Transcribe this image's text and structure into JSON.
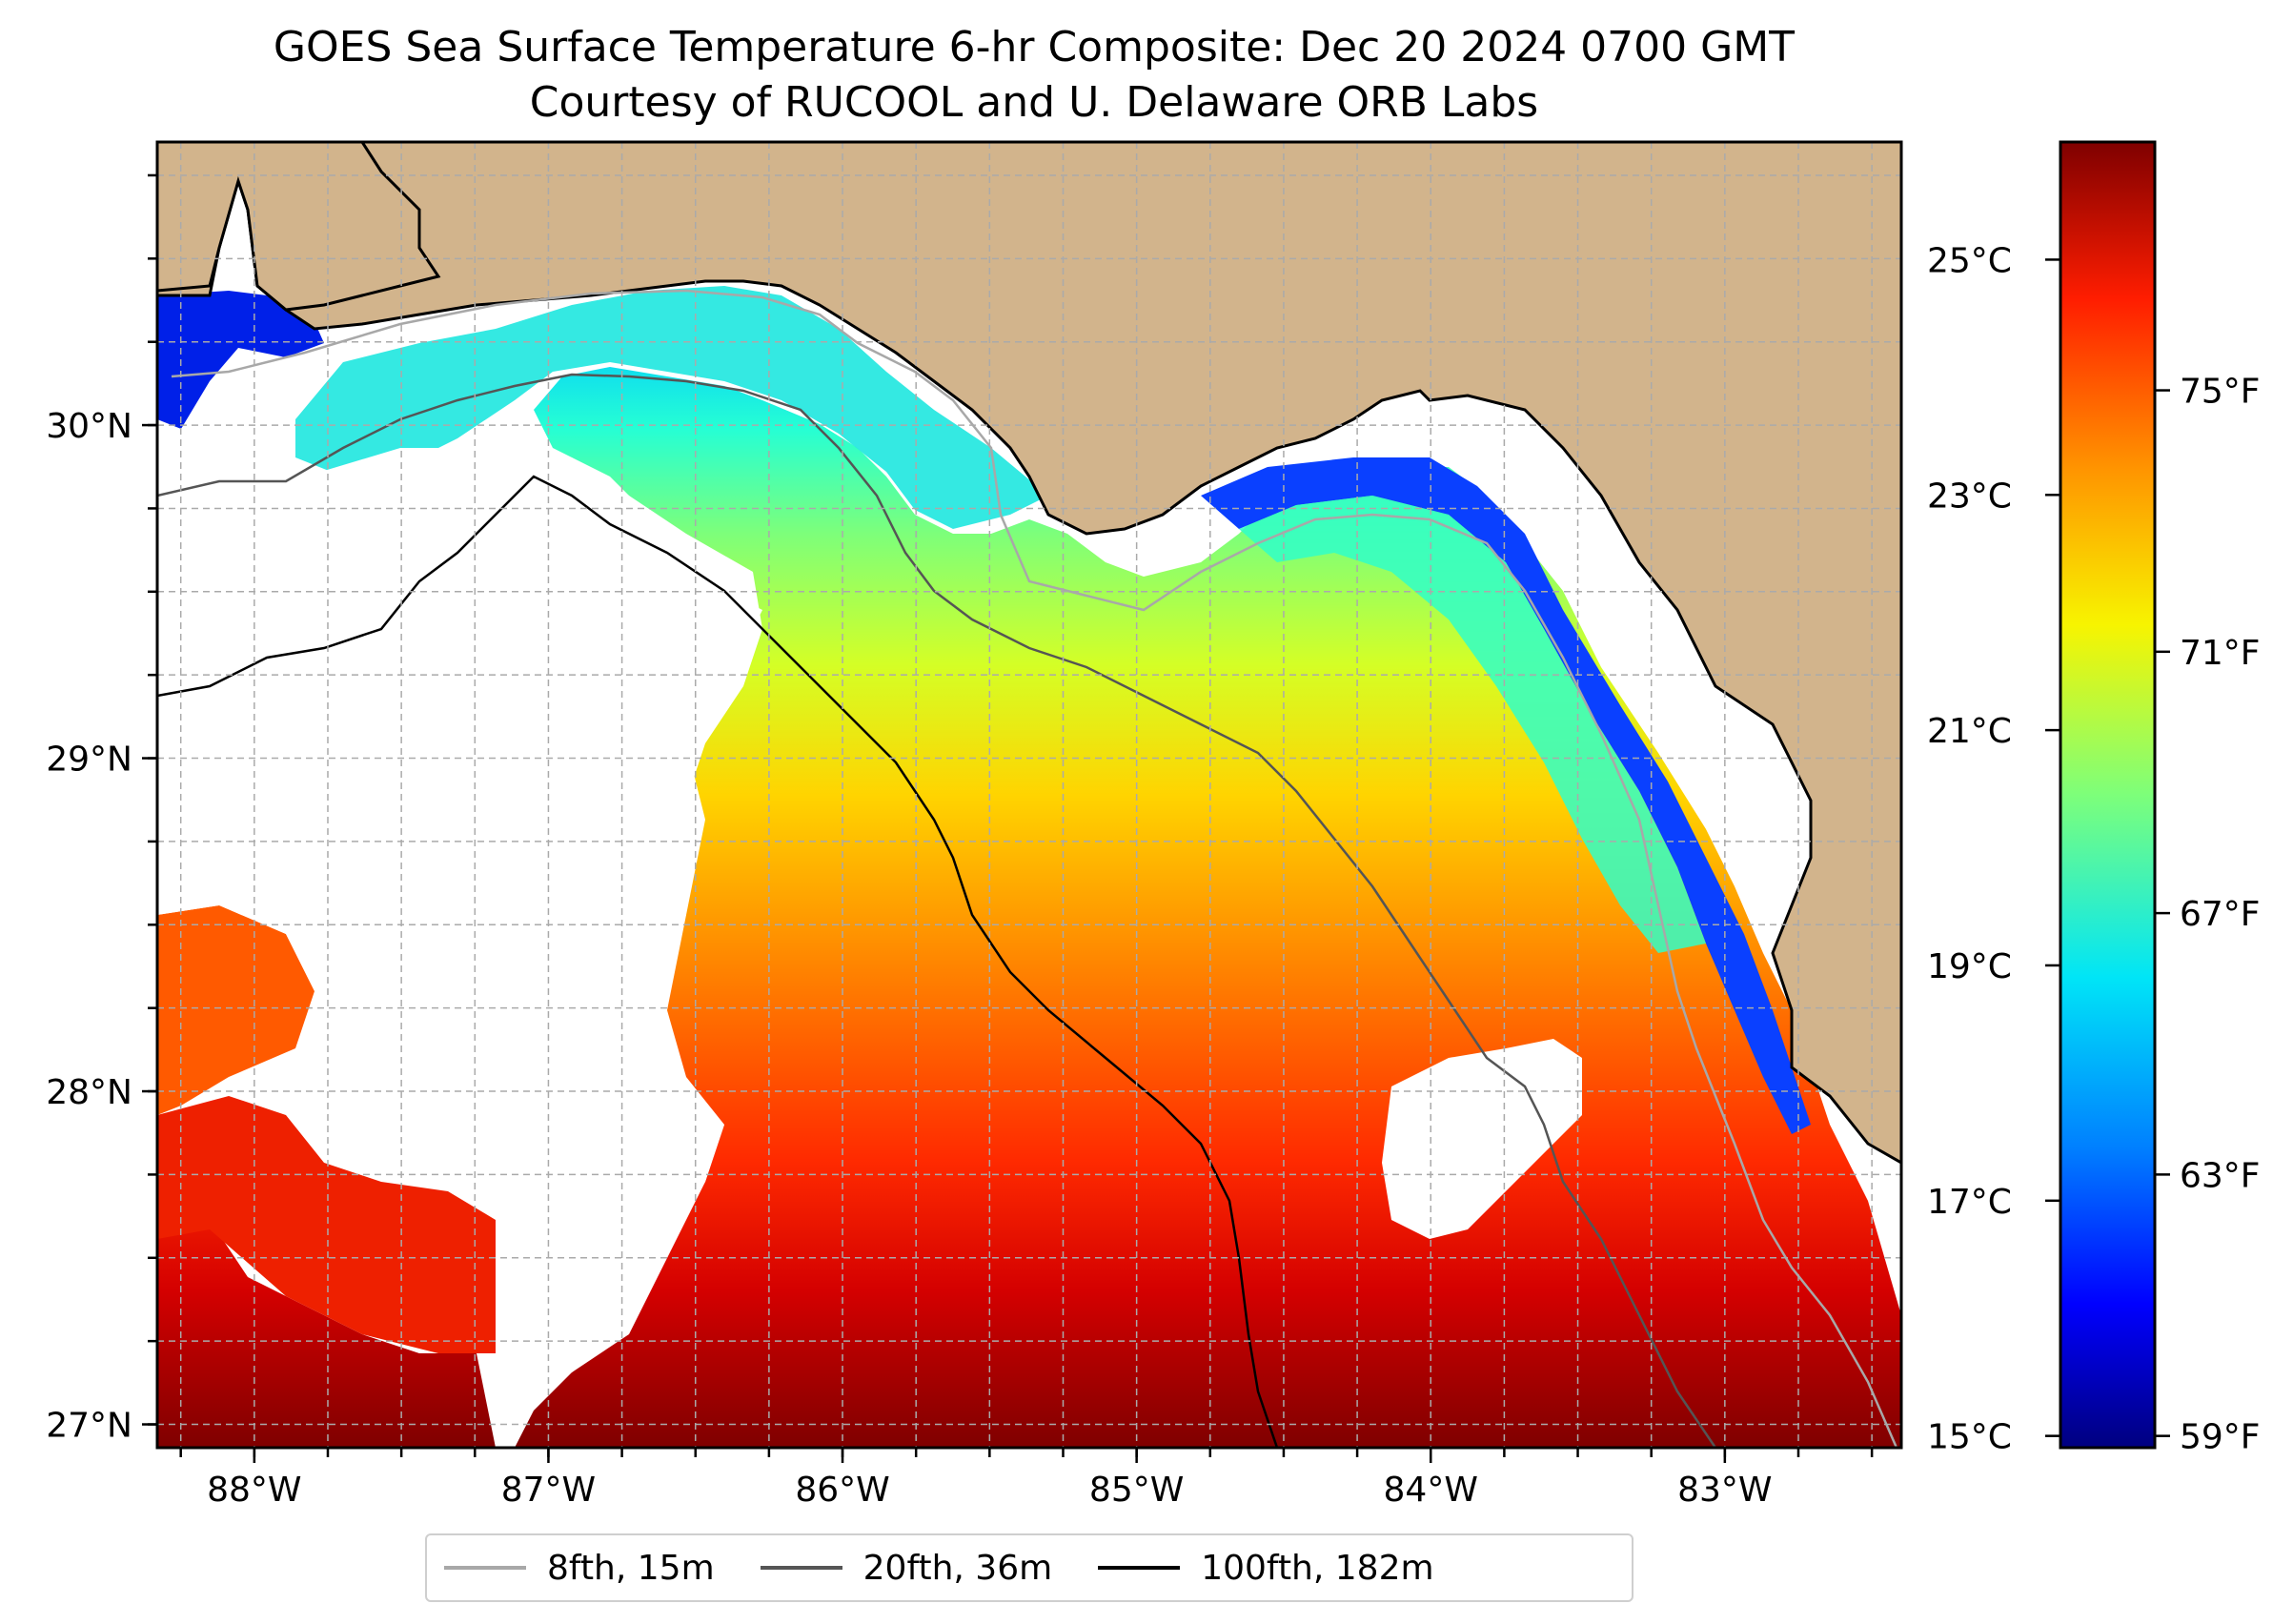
{
  "title": "GOES Sea Surface Temperature 6-hr Composite: Dec 20 2024 0700 GMT",
  "subtitle": "Courtesy of RUCOOL and U. Delaware ORB Labs",
  "map": {
    "extent": {
      "lon_min": -88.33,
      "lon_max": -82.4,
      "lat_min": 26.93,
      "lat_max": 30.85
    },
    "lat_ticks": [
      {
        "value": 30,
        "label": "30°N"
      },
      {
        "value": 29,
        "label": "29°N"
      },
      {
        "value": 28,
        "label": "28°N"
      },
      {
        "value": 27,
        "label": "27°N"
      }
    ],
    "lon_ticks": [
      {
        "value": -88,
        "label": "88°W"
      },
      {
        "value": -87,
        "label": "87°W"
      },
      {
        "value": -86,
        "label": "86°W"
      },
      {
        "value": -85,
        "label": "85°W"
      },
      {
        "value": -84,
        "label": "84°W"
      },
      {
        "value": -83,
        "label": "83°W"
      }
    ],
    "gridlines": true,
    "land_color": "#d2b48c",
    "no_data_color": "#ffffff"
  },
  "colorbar": {
    "colormap": "jet",
    "celsius_ticks": [
      {
        "value": 25,
        "label": "25°C"
      },
      {
        "value": 23,
        "label": "23°C"
      },
      {
        "value": 21,
        "label": "21°C"
      },
      {
        "value": 19,
        "label": "19°C"
      },
      {
        "value": 17,
        "label": "17°C"
      },
      {
        "value": 15,
        "label": "15°C"
      }
    ],
    "fahrenheit_ticks": [
      {
        "value": 75,
        "label": "75°F"
      },
      {
        "value": 71,
        "label": "71°F"
      },
      {
        "value": 67,
        "label": "67°F"
      },
      {
        "value": 63,
        "label": "63°F"
      },
      {
        "value": 59,
        "label": "59°F"
      }
    ],
    "range_c": [
      14.9,
      26.0
    ]
  },
  "legend": {
    "placement": "bottom-center",
    "items": [
      {
        "label": "8fth, 15m",
        "color": "#a8a8a8"
      },
      {
        "label": "20fth, 36m",
        "color": "#555555"
      },
      {
        "label": "100fth, 182m",
        "color": "#000000"
      }
    ]
  }
}
